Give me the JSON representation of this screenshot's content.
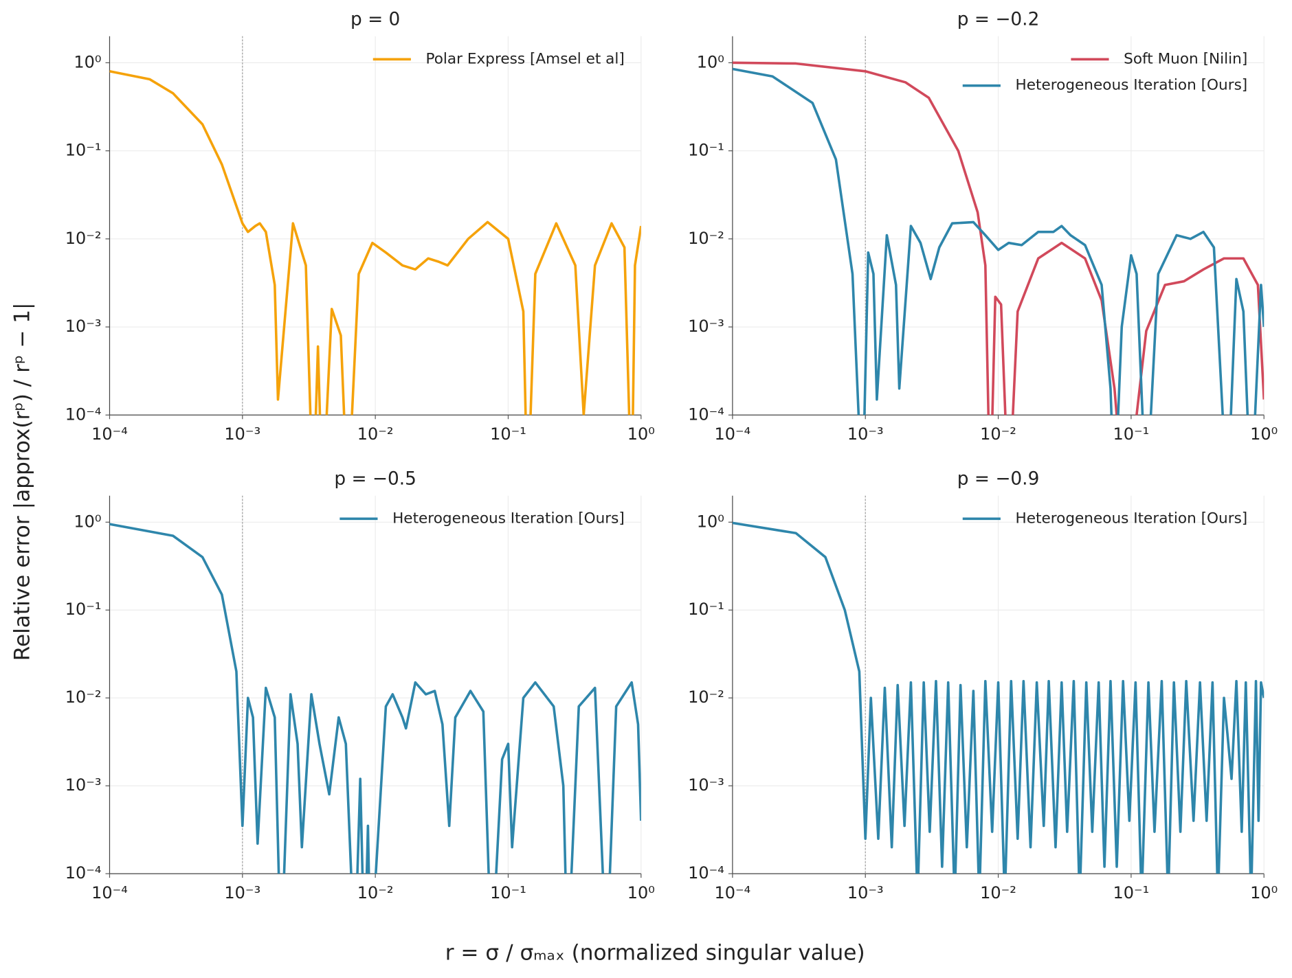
{
  "xlabel": "r = σ / σₘₐₓ (normalized singular value)",
  "ylabel": "Relative error |approx(rᵖ) / rᵖ − 1|",
  "chart_data": [
    {
      "type": "line",
      "title": "p = 0",
      "log_x": true,
      "log_y": true,
      "grid": true,
      "legend": "upper right",
      "vline": 0.001,
      "xlim": [
        0.0001,
        1
      ],
      "ylim": [
        0.0001,
        2
      ],
      "xticks": [
        {
          "value": 0.0001,
          "label": "10⁻⁴"
        },
        {
          "value": 0.001,
          "label": "10⁻³"
        },
        {
          "value": 0.01,
          "label": "10⁻²"
        },
        {
          "value": 0.1,
          "label": "10⁻¹"
        },
        {
          "value": 1,
          "label": "10⁰"
        }
      ],
      "yticks": [
        {
          "value": 0.0001,
          "label": "10⁻⁴"
        },
        {
          "value": 0.001,
          "label": "10⁻³"
        },
        {
          "value": 0.01,
          "label": "10⁻²"
        },
        {
          "value": 0.1,
          "label": "10⁻¹"
        },
        {
          "value": 1,
          "label": "10⁰"
        }
      ],
      "series": [
        {
          "name": "Polar Express [Amsel et al]",
          "color": "#f5a20a",
          "x": [
            0.0001,
            0.0002,
            0.0003,
            0.0005,
            0.0007,
            0.001,
            0.0011,
            0.00125,
            0.00135,
            0.0015,
            0.00175,
            0.00185,
            0.0024,
            0.003,
            0.0034,
            0.0037,
            0.004,
            0.0047,
            0.0055,
            0.0062,
            0.0075,
            0.0095,
            0.012,
            0.016,
            0.02,
            0.025,
            0.03,
            0.035,
            0.05,
            0.07,
            0.1,
            0.13,
            0.14,
            0.16,
            0.23,
            0.32,
            0.37,
            0.45,
            0.6,
            0.75,
            0.85,
            0.9,
            1
          ],
          "values": [
            0.8,
            0.65,
            0.45,
            0.2,
            0.07,
            0.015,
            0.012,
            0.014,
            0.015,
            0.012,
            0.003,
            0.00015,
            0.015,
            0.005,
            1e-05,
            0.0006,
            1e-05,
            0.0016,
            0.0008,
            1e-05,
            0.004,
            0.009,
            0.007,
            0.005,
            0.0045,
            0.006,
            0.0055,
            0.005,
            0.01,
            0.0155,
            0.01,
            0.0015,
            1e-05,
            0.004,
            0.015,
            0.005,
            0.0001,
            0.005,
            0.015,
            0.008,
            1e-05,
            0.005,
            0.014
          ]
        }
      ]
    },
    {
      "type": "line",
      "title": "p = −0.2",
      "log_x": true,
      "log_y": true,
      "grid": true,
      "legend": "upper right",
      "vline": 0.001,
      "xlim": [
        0.0001,
        1
      ],
      "ylim": [
        0.0001,
        2
      ],
      "xticks": [
        {
          "value": 0.0001,
          "label": "10⁻⁴"
        },
        {
          "value": 0.001,
          "label": "10⁻³"
        },
        {
          "value": 0.01,
          "label": "10⁻²"
        },
        {
          "value": 0.1,
          "label": "10⁻¹"
        },
        {
          "value": 1,
          "label": "10⁰"
        }
      ],
      "yticks": [
        {
          "value": 0.0001,
          "label": "10⁻⁴"
        },
        {
          "value": 0.001,
          "label": "10⁻³"
        },
        {
          "value": 0.01,
          "label": "10⁻²"
        },
        {
          "value": 0.1,
          "label": "10⁻¹"
        },
        {
          "value": 1,
          "label": "10⁰"
        }
      ],
      "series": [
        {
          "name": "Soft Muon [Nilin]",
          "color": "#d1495b",
          "x": [
            0.0001,
            0.0003,
            0.001,
            0.002,
            0.003,
            0.005,
            0.007,
            0.008,
            0.0087,
            0.0095,
            0.0105,
            0.012,
            0.014,
            0.02,
            0.03,
            0.045,
            0.06,
            0.075,
            0.085,
            0.11,
            0.13,
            0.18,
            0.25,
            0.35,
            0.5,
            0.7,
            0.9,
            1
          ],
          "values": [
            1.0,
            0.98,
            0.8,
            0.6,
            0.4,
            0.1,
            0.02,
            0.005,
            1e-05,
            0.0022,
            0.0018,
            1e-05,
            0.0015,
            0.006,
            0.009,
            0.006,
            0.002,
            0.0002,
            2e-05,
            0.0001,
            0.0009,
            0.003,
            0.0033,
            0.0045,
            0.006,
            0.006,
            0.003,
            0.00015
          ]
        },
        {
          "name": "Heterogeneous Iteration [Ours]",
          "color": "#2e86ab",
          "x": [
            0.0001,
            0.0002,
            0.0004,
            0.0006,
            0.0008,
            0.00095,
            0.00105,
            0.00115,
            0.00122,
            0.00145,
            0.0017,
            0.0018,
            0.0022,
            0.0026,
            0.0031,
            0.0036,
            0.0045,
            0.0065,
            0.008,
            0.01,
            0.012,
            0.015,
            0.02,
            0.026,
            0.03,
            0.035,
            0.045,
            0.06,
            0.07,
            0.075,
            0.085,
            0.1,
            0.11,
            0.13,
            0.16,
            0.22,
            0.28,
            0.35,
            0.42,
            0.53,
            0.62,
            0.7,
            0.8,
            0.95,
            1
          ],
          "values": [
            0.85,
            0.7,
            0.35,
            0.08,
            0.004,
            1e-05,
            0.007,
            0.004,
            0.00015,
            0.011,
            0.003,
            0.0002,
            0.014,
            0.009,
            0.0035,
            0.008,
            0.015,
            0.0155,
            0.011,
            0.0075,
            0.009,
            0.0085,
            0.012,
            0.012,
            0.014,
            0.011,
            0.0085,
            0.003,
            0.0002,
            1e-05,
            0.001,
            0.0065,
            0.004,
            1e-05,
            0.004,
            0.011,
            0.01,
            0.012,
            0.008,
            1e-05,
            0.0035,
            0.0015,
            1e-05,
            0.003,
            0.001
          ]
        }
      ]
    },
    {
      "type": "line",
      "title": "p = −0.5",
      "log_x": true,
      "log_y": true,
      "grid": true,
      "legend": "upper right",
      "vline": 0.001,
      "xlim": [
        0.0001,
        1
      ],
      "ylim": [
        0.0001,
        2
      ],
      "xticks": [
        {
          "value": 0.0001,
          "label": "10⁻⁴"
        },
        {
          "value": 0.001,
          "label": "10⁻³"
        },
        {
          "value": 0.01,
          "label": "10⁻²"
        },
        {
          "value": 0.1,
          "label": "10⁻¹"
        },
        {
          "value": 1,
          "label": "10⁰"
        }
      ],
      "yticks": [
        {
          "value": 0.0001,
          "label": "10⁻⁴"
        },
        {
          "value": 0.001,
          "label": "10⁻³"
        },
        {
          "value": 0.01,
          "label": "10⁻²"
        },
        {
          "value": 0.1,
          "label": "10⁻¹"
        },
        {
          "value": 1,
          "label": "10⁰"
        }
      ],
      "series": [
        {
          "name": "Heterogeneous Iteration [Ours]",
          "color": "#2e86ab",
          "x": [
            0.0001,
            0.0003,
            0.0005,
            0.0007,
            0.0009,
            0.001,
            0.0011,
            0.0012,
            0.0013,
            0.0015,
            0.00175,
            0.00195,
            0.0023,
            0.0026,
            0.0028,
            0.0033,
            0.0038,
            0.0045,
            0.0053,
            0.006,
            0.007,
            0.0077,
            0.0083,
            0.0088,
            0.0092,
            0.012,
            0.0135,
            0.016,
            0.017,
            0.02,
            0.024,
            0.028,
            0.032,
            0.036,
            0.04,
            0.052,
            0.065,
            0.075,
            0.09,
            0.1,
            0.107,
            0.13,
            0.16,
            0.22,
            0.26,
            0.28,
            0.34,
            0.45,
            0.55,
            0.65,
            0.85,
            0.95,
            1
          ],
          "values": [
            0.95,
            0.7,
            0.4,
            0.15,
            0.02,
            0.00035,
            0.01,
            0.006,
            0.00022,
            0.013,
            0.006,
            1e-05,
            0.011,
            0.003,
            0.0002,
            0.011,
            0.003,
            0.0008,
            0.006,
            0.003,
            1e-05,
            0.0012,
            1e-05,
            0.00035,
            1e-05,
            0.008,
            0.011,
            0.006,
            0.0045,
            0.015,
            0.011,
            0.012,
            0.005,
            0.00035,
            0.006,
            0.012,
            0.007,
            1e-05,
            0.002,
            0.003,
            0.0002,
            0.01,
            0.015,
            0.008,
            0.001,
            1e-05,
            0.008,
            0.013,
            1e-05,
            0.008,
            0.015,
            0.005,
            0.0004
          ]
        }
      ]
    },
    {
      "type": "line",
      "title": "p = −0.9",
      "log_x": true,
      "log_y": true,
      "grid": true,
      "legend": "upper right",
      "vline": 0.001,
      "xlim": [
        0.0001,
        1
      ],
      "ylim": [
        0.0001,
        2
      ],
      "xticks": [
        {
          "value": 0.0001,
          "label": "10⁻⁴"
        },
        {
          "value": 0.001,
          "label": "10⁻³"
        },
        {
          "value": 0.01,
          "label": "10⁻²"
        },
        {
          "value": 0.1,
          "label": "10⁻¹"
        },
        {
          "value": 1,
          "label": "10⁰"
        }
      ],
      "yticks": [
        {
          "value": 0.0001,
          "label": "10⁻⁴"
        },
        {
          "value": 0.001,
          "label": "10⁻³"
        },
        {
          "value": 0.01,
          "label": "10⁻²"
        },
        {
          "value": 0.1,
          "label": "10⁻¹"
        },
        {
          "value": 1,
          "label": "10⁰"
        }
      ],
      "series": [
        {
          "name": "Heterogeneous Iteration [Ours]",
          "color": "#2e86ab",
          "x": [
            0.0001,
            0.0003,
            0.0005,
            0.0007,
            0.0009,
            0.001,
            0.0011,
            0.00125,
            0.0014,
            0.00158,
            0.00175,
            0.00197,
            0.0022,
            0.00247,
            0.00275,
            0.00305,
            0.0034,
            0.00378,
            0.0042,
            0.0047,
            0.0052,
            0.0058,
            0.0065,
            0.0072,
            0.008,
            0.009,
            0.01,
            0.0112,
            0.0125,
            0.014,
            0.0155,
            0.0175,
            0.0195,
            0.022,
            0.024,
            0.027,
            0.03,
            0.033,
            0.037,
            0.041,
            0.046,
            0.051,
            0.057,
            0.063,
            0.07,
            0.078,
            0.087,
            0.097,
            0.108,
            0.12,
            0.135,
            0.15,
            0.17,
            0.19,
            0.21,
            0.235,
            0.26,
            0.295,
            0.33,
            0.37,
            0.41,
            0.45,
            0.5,
            0.53,
            0.57,
            0.62,
            0.68,
            0.73,
            0.8,
            0.87,
            0.91,
            0.95,
            1
          ],
          "values": [
            0.98,
            0.75,
            0.4,
            0.1,
            0.02,
            0.00025,
            0.01,
            0.00025,
            0.013,
            0.0002,
            0.014,
            0.00035,
            0.015,
            5e-05,
            0.015,
            0.0003,
            0.0155,
            0.00012,
            0.015,
            5e-05,
            0.014,
            0.0002,
            0.012,
            5e-05,
            0.0155,
            0.0003,
            0.015,
            5e-05,
            0.0155,
            0.00025,
            0.0155,
            0.0002,
            0.015,
            0.00035,
            0.0155,
            0.0002,
            0.015,
            0.0003,
            0.0155,
            5e-05,
            0.015,
            0.0003,
            0.015,
            0.00012,
            0.0155,
            0.00012,
            0.0155,
            0.0004,
            0.015,
            5e-05,
            0.015,
            0.0003,
            0.0155,
            5e-05,
            0.015,
            0.0003,
            0.0155,
            0.0004,
            0.015,
            0.0004,
            0.015,
            5e-05,
            0.01,
            0.004,
            0.0012,
            0.0155,
            0.0003,
            0.015,
            5e-05,
            0.0155,
            0.0004,
            0.015,
            0.01
          ]
        }
      ]
    }
  ]
}
